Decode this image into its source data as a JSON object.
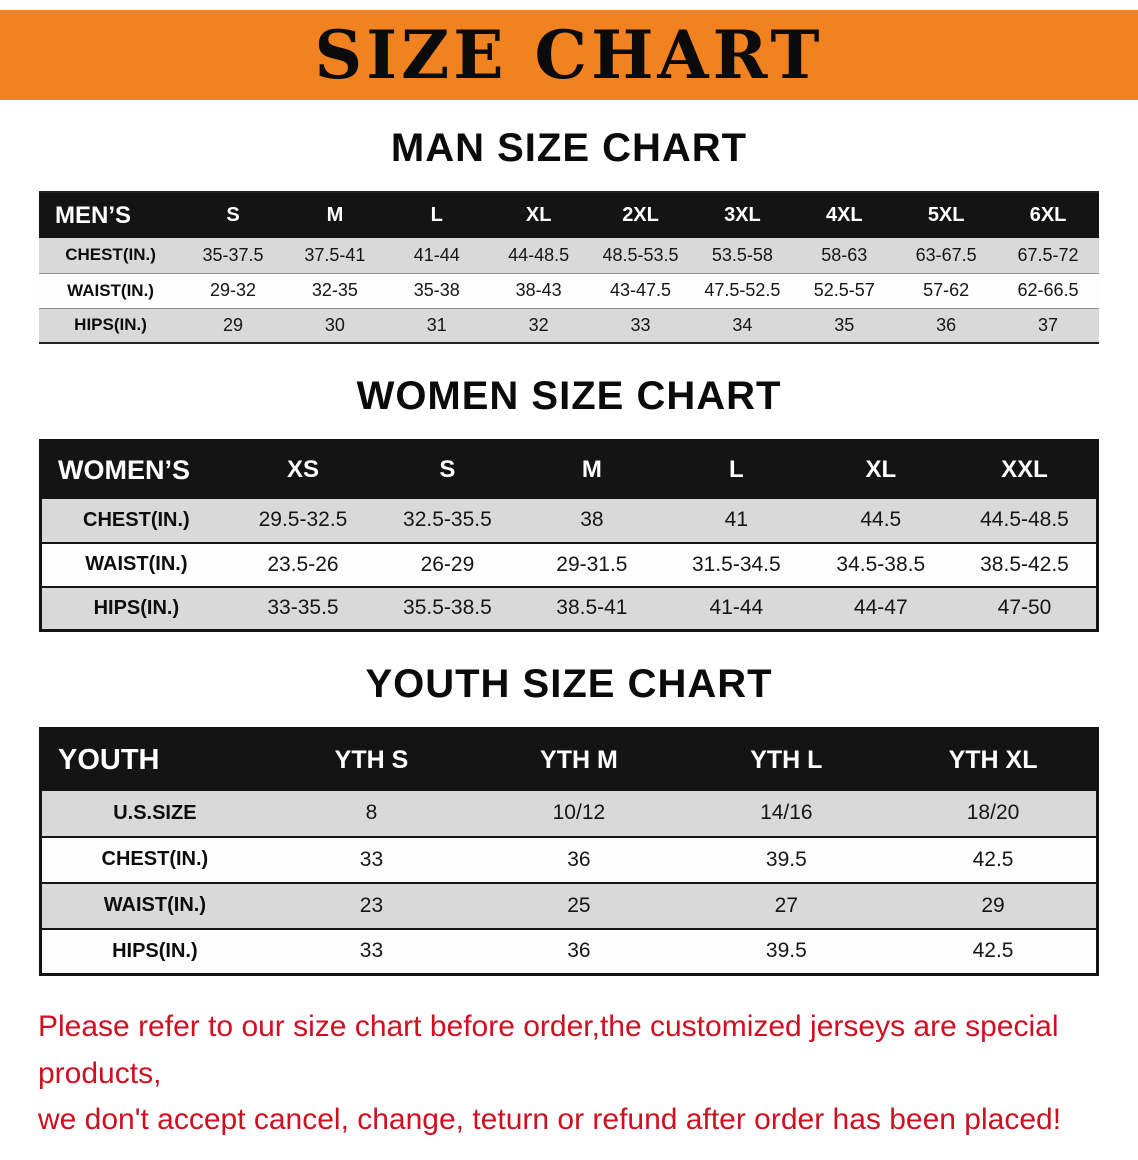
{
  "banner": {
    "title": "SIZE CHART"
  },
  "men": {
    "heading": "MAN SIZE CHART",
    "header": [
      "MEN’S",
      "S",
      "M",
      "L",
      "XL",
      "2XL",
      "3XL",
      "4XL",
      "5XL",
      "6XL"
    ],
    "rows": [
      {
        "label": "CHEST(IN.)",
        "values": [
          "35-37.5",
          "37.5-41",
          "41-44",
          "44-48.5",
          "48.5-53.5",
          "53.5-58",
          "58-63",
          "63-67.5",
          "67.5-72"
        ]
      },
      {
        "label": "WAIST(IN.)",
        "values": [
          "29-32",
          "32-35",
          "35-38",
          "38-43",
          "43-47.5",
          "47.5-52.5",
          "52.5-57",
          "57-62",
          "62-66.5"
        ]
      },
      {
        "label": "HIPS(IN.)",
        "values": [
          "29",
          "30",
          "31",
          "32",
          "33",
          "34",
          "35",
          "36",
          "37"
        ]
      }
    ]
  },
  "women": {
    "heading": "WOMEN SIZE CHART",
    "header": [
      "WOMEN’S",
      "XS",
      "S",
      "M",
      "L",
      "XL",
      "XXL"
    ],
    "rows": [
      {
        "label": "CHEST(IN.)",
        "values": [
          "29.5-32.5",
          "32.5-35.5",
          "38",
          "41",
          "44.5",
          "44.5-48.5"
        ]
      },
      {
        "label": "WAIST(IN.)",
        "values": [
          "23.5-26",
          "26-29",
          "29-31.5",
          "31.5-34.5",
          "34.5-38.5",
          "38.5-42.5"
        ]
      },
      {
        "label": "HIPS(IN.)",
        "values": [
          "33-35.5",
          "35.5-38.5",
          "38.5-41",
          "41-44",
          "44-47",
          "47-50"
        ]
      }
    ]
  },
  "youth": {
    "heading": "YOUTH SIZE CHART",
    "header": [
      "YOUTH",
      "YTH S",
      "YTH M",
      "YTH L",
      "YTH XL"
    ],
    "rows": [
      {
        "label": "U.S.SIZE",
        "values": [
          "8",
          "10/12",
          "14/16",
          "18/20"
        ]
      },
      {
        "label": "CHEST(IN.)",
        "values": [
          "33",
          "36",
          "39.5",
          "42.5"
        ]
      },
      {
        "label": "WAIST(IN.)",
        "values": [
          "23",
          "25",
          "27",
          "29"
        ]
      },
      {
        "label": "HIPS(IN.)",
        "values": [
          "33",
          "36",
          "39.5",
          "42.5"
        ]
      }
    ]
  },
  "disclaimer": {
    "line1": "Please refer to our size chart before order,the customized jerseys are special products,",
    "line2": "we don't accept cancel, change, teturn or refund after order has been placed!"
  },
  "colors": {
    "banner_bg": "#f28220",
    "header_bg": "#141414",
    "row_gray": "#d9d9d9",
    "disclaimer_red": "#cf1020"
  }
}
